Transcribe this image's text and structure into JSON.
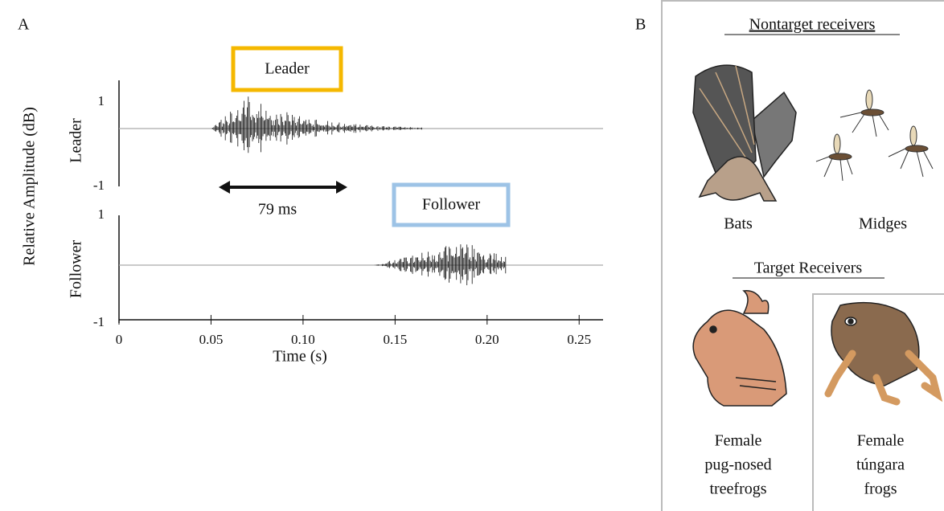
{
  "panel_a": {
    "label": "A",
    "y_axis_label": "Relative Amplitude (dB)",
    "x_axis_label": "Time (s)",
    "xlim": [
      0,
      0.263
    ],
    "xticks": [
      0,
      {
        "value": 0.05,
        "label": "0.05"
      },
      {
        "value": 0.1,
        "label": "0.10"
      },
      {
        "value": 0.15,
        "label": "0.15"
      },
      {
        "value": 0.2,
        "label": "0.20"
      },
      {
        "value": 0.25,
        "label": "0.25"
      }
    ],
    "leader": {
      "axis_label": "Leader",
      "box_label": "Leader",
      "ylim": [
        -1,
        1
      ],
      "yticks": [
        -1,
        1
      ]
    },
    "follower": {
      "axis_label": "Follower",
      "box_label": "Follower",
      "ylim": [
        -1,
        1
      ],
      "yticks": [
        -1,
        1
      ]
    },
    "delay_label": "79 ms"
  },
  "panel_b": {
    "label": "B",
    "nontarget_title": "Nontarget receivers",
    "bats": "Bats",
    "midges": "Midges",
    "target_title": "Target Receivers",
    "treefrogs": [
      "Female",
      "pug-nosed",
      "treefrogs"
    ],
    "tungara": [
      "Female",
      "túngara",
      "frogs"
    ]
  }
}
